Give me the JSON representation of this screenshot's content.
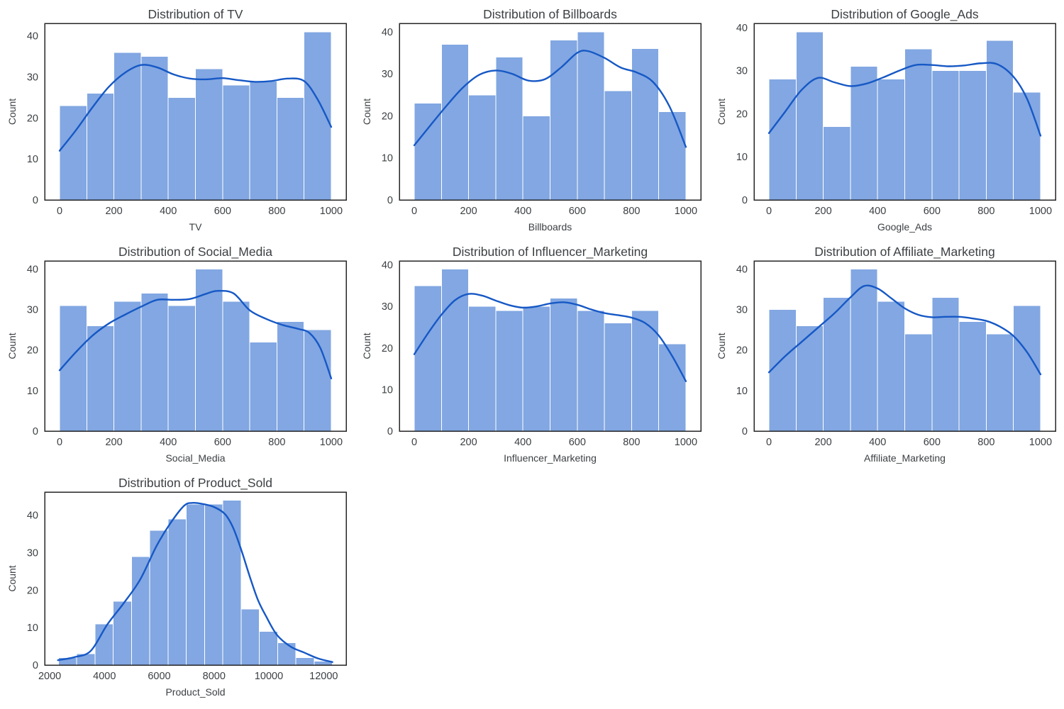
{
  "figure": {
    "background": "#ffffff",
    "bar_fill": "#82A7E2",
    "bar_edge": "#ffffff",
    "kde_color": "#1658C5",
    "text_color": "#3c4043",
    "axis_color": "#262626",
    "ylabel": "Count"
  },
  "chart_data": [
    {
      "type": "bar",
      "subtype": "histogram-with-kde",
      "title": "Distribution of TV",
      "xlabel": "TV",
      "ylabel": "Count",
      "row": 0,
      "col": 0,
      "bin_start": 0,
      "bin_width": 100,
      "counts": [
        23,
        26,
        36,
        35,
        25,
        32,
        28,
        29,
        25,
        41
      ],
      "x_ticks": [
        0,
        200,
        400,
        600,
        800,
        1000
      ],
      "y_ticks": [
        0,
        10,
        20,
        30,
        40
      ],
      "xlim": [
        -55,
        1055
      ],
      "ylim": [
        0,
        43.05
      ],
      "grid": false,
      "kde": [
        [
          0,
          12
        ],
        [
          60,
          17
        ],
        [
          120,
          22.5
        ],
        [
          180,
          27.5
        ],
        [
          240,
          31
        ],
        [
          300,
          32.9
        ],
        [
          360,
          32.3
        ],
        [
          420,
          30.6
        ],
        [
          480,
          29.6
        ],
        [
          540,
          29.4
        ],
        [
          600,
          29.7
        ],
        [
          660,
          29.2
        ],
        [
          720,
          28.8
        ],
        [
          780,
          29
        ],
        [
          840,
          29.6
        ],
        [
          900,
          29
        ],
        [
          950,
          24.5
        ],
        [
          1000,
          17.8
        ]
      ]
    },
    {
      "type": "bar",
      "subtype": "histogram-with-kde",
      "title": "Distribution of Billboards",
      "xlabel": "Billboards",
      "ylabel": "Count",
      "row": 0,
      "col": 1,
      "bin_start": 0,
      "bin_width": 100,
      "counts": [
        23,
        37,
        25,
        34,
        20,
        38,
        40,
        26,
        36,
        21
      ],
      "x_ticks": [
        0,
        200,
        400,
        600,
        800,
        1000
      ],
      "y_ticks": [
        0,
        10,
        20,
        30,
        40
      ],
      "xlim": [
        -55,
        1055
      ],
      "ylim": [
        0,
        42
      ],
      "grid": false,
      "kde": [
        [
          0,
          13
        ],
        [
          60,
          17.8
        ],
        [
          120,
          22.5
        ],
        [
          180,
          26.8
        ],
        [
          240,
          29.8
        ],
        [
          300,
          30.8
        ],
        [
          360,
          30
        ],
        [
          420,
          28.4
        ],
        [
          480,
          28.7
        ],
        [
          540,
          31.5
        ],
        [
          600,
          35
        ],
        [
          640,
          35.4
        ],
        [
          700,
          33.8
        ],
        [
          760,
          31.5
        ],
        [
          820,
          30.3
        ],
        [
          880,
          28
        ],
        [
          940,
          22.2
        ],
        [
          1000,
          12.6
        ]
      ]
    },
    {
      "type": "bar",
      "subtype": "histogram-with-kde",
      "title": "Distribution of Google_Ads",
      "xlabel": "Google_Ads",
      "ylabel": "Count",
      "row": 0,
      "col": 2,
      "bin_start": 0,
      "bin_width": 100,
      "counts": [
        28,
        39,
        17,
        31,
        28,
        35,
        30,
        30,
        37,
        25
      ],
      "x_ticks": [
        0,
        200,
        400,
        600,
        800,
        1000
      ],
      "y_ticks": [
        0,
        10,
        20,
        30,
        40
      ],
      "xlim": [
        -55,
        1055
      ],
      "ylim": [
        0,
        40.95
      ],
      "grid": false,
      "kde": [
        [
          0,
          15.5
        ],
        [
          60,
          20.5
        ],
        [
          120,
          25.5
        ],
        [
          180,
          28.3
        ],
        [
          240,
          27.3
        ],
        [
          300,
          26.4
        ],
        [
          360,
          27
        ],
        [
          420,
          28.4
        ],
        [
          480,
          30
        ],
        [
          540,
          31.3
        ],
        [
          600,
          31.3
        ],
        [
          660,
          31
        ],
        [
          720,
          31.2
        ],
        [
          780,
          31.7
        ],
        [
          840,
          31.5
        ],
        [
          900,
          28.6
        ],
        [
          950,
          23.5
        ],
        [
          1000,
          14.9
        ]
      ]
    },
    {
      "type": "bar",
      "subtype": "histogram-with-kde",
      "title": "Distribution of Social_Media",
      "xlabel": "Social_Media",
      "ylabel": "Count",
      "row": 1,
      "col": 0,
      "bin_start": 0,
      "bin_width": 100,
      "counts": [
        31,
        26,
        32,
        34,
        31,
        40,
        32,
        22,
        27,
        25
      ],
      "x_ticks": [
        0,
        200,
        400,
        600,
        800,
        1000
      ],
      "y_ticks": [
        0,
        10,
        20,
        30,
        40
      ],
      "xlim": [
        -55,
        1055
      ],
      "ylim": [
        0,
        42
      ],
      "grid": false,
      "kde": [
        [
          0,
          15
        ],
        [
          60,
          19.5
        ],
        [
          120,
          23.5
        ],
        [
          180,
          26.5
        ],
        [
          240,
          28.7
        ],
        [
          300,
          30.7
        ],
        [
          360,
          32.4
        ],
        [
          420,
          32.4
        ],
        [
          480,
          32.6
        ],
        [
          540,
          33.9
        ],
        [
          580,
          34.6
        ],
        [
          640,
          34
        ],
        [
          700,
          29.8
        ],
        [
          760,
          27.7
        ],
        [
          820,
          26.2
        ],
        [
          880,
          25.2
        ],
        [
          920,
          24.2
        ],
        [
          960,
          20.5
        ],
        [
          1000,
          13
        ]
      ]
    },
    {
      "type": "bar",
      "subtype": "histogram-with-kde",
      "title": "Distribution of Influencer_Marketing",
      "xlabel": "Influencer_Marketing",
      "ylabel": "Count",
      "row": 1,
      "col": 1,
      "bin_start": 0,
      "bin_width": 100,
      "counts": [
        35,
        39,
        30,
        29,
        30,
        32,
        29,
        26,
        29,
        21
      ],
      "x_ticks": [
        0,
        200,
        400,
        600,
        800,
        1000
      ],
      "y_ticks": [
        0,
        10,
        20,
        30,
        40
      ],
      "xlim": [
        -55,
        1055
      ],
      "ylim": [
        0,
        40.95
      ],
      "grid": false,
      "kde": [
        [
          0,
          18.5
        ],
        [
          50,
          23.5
        ],
        [
          100,
          28
        ],
        [
          150,
          31.5
        ],
        [
          200,
          33
        ],
        [
          250,
          32.6
        ],
        [
          300,
          31.4
        ],
        [
          350,
          30.3
        ],
        [
          400,
          29.7
        ],
        [
          450,
          30
        ],
        [
          500,
          30.7
        ],
        [
          550,
          31
        ],
        [
          600,
          30.4
        ],
        [
          650,
          29.3
        ],
        [
          700,
          28.4
        ],
        [
          750,
          27.9
        ],
        [
          800,
          27.3
        ],
        [
          850,
          26
        ],
        [
          900,
          23
        ],
        [
          950,
          18
        ],
        [
          1000,
          12
        ]
      ]
    },
    {
      "type": "bar",
      "subtype": "histogram-with-kde",
      "title": "Distribution of Affiliate_Marketing",
      "xlabel": "Affiliate_Marketing",
      "ylabel": "Count",
      "row": 1,
      "col": 2,
      "bin_start": 0,
      "bin_width": 100,
      "counts": [
        30,
        26,
        33,
        40,
        32,
        24,
        33,
        27,
        24,
        31
      ],
      "x_ticks": [
        0,
        200,
        400,
        600,
        800,
        1000
      ],
      "y_ticks": [
        0,
        10,
        20,
        30,
        40
      ],
      "xlim": [
        -55,
        1055
      ],
      "ylim": [
        0,
        42
      ],
      "grid": false,
      "kde": [
        [
          0,
          14.5
        ],
        [
          60,
          18.5
        ],
        [
          120,
          22
        ],
        [
          180,
          25.5
        ],
        [
          240,
          29
        ],
        [
          300,
          33
        ],
        [
          350,
          35.8
        ],
        [
          400,
          35.2
        ],
        [
          450,
          32.8
        ],
        [
          500,
          30.3
        ],
        [
          550,
          28.7
        ],
        [
          600,
          28.1
        ],
        [
          650,
          28.2
        ],
        [
          700,
          28.2
        ],
        [
          750,
          27.8
        ],
        [
          800,
          27.2
        ],
        [
          850,
          25.8
        ],
        [
          900,
          23.5
        ],
        [
          950,
          19.5
        ],
        [
          1000,
          14
        ]
      ]
    },
    {
      "type": "bar",
      "subtype": "histogram-with-kde",
      "title": "Distribution of Product_Sold",
      "xlabel": "Product_Sold",
      "ylabel": "Count",
      "row": 2,
      "col": 0,
      "bin_start": 2317,
      "bin_width": 667,
      "counts": [
        2,
        3,
        11,
        17,
        29,
        36,
        39,
        43,
        43,
        44,
        15,
        9,
        6,
        2,
        1
      ],
      "x_ticks": [
        2000,
        4000,
        6000,
        8000,
        10000,
        12000
      ],
      "y_ticks": [
        0,
        10,
        20,
        30,
        40
      ],
      "xlim": [
        1817,
        12822
      ],
      "ylim": [
        0,
        46.2
      ],
      "grid": false,
      "kde": [
        [
          2300,
          1.3
        ],
        [
          2900,
          2.1
        ],
        [
          3500,
          3.8
        ],
        [
          4100,
          10.8
        ],
        [
          4700,
          16.5
        ],
        [
          5300,
          22.8
        ],
        [
          5900,
          31.8
        ],
        [
          6400,
          37.8
        ],
        [
          6900,
          42.5
        ],
        [
          7200,
          43.3
        ],
        [
          7600,
          43
        ],
        [
          8000,
          42.2
        ],
        [
          8400,
          40.3
        ],
        [
          8700,
          36.6
        ],
        [
          9000,
          30.6
        ],
        [
          9300,
          23.7
        ],
        [
          9600,
          17.4
        ],
        [
          9900,
          13
        ],
        [
          10300,
          8
        ],
        [
          10800,
          4.9
        ],
        [
          11300,
          3.3
        ],
        [
          11800,
          1.75
        ],
        [
          12322,
          0.8
        ]
      ]
    }
  ]
}
